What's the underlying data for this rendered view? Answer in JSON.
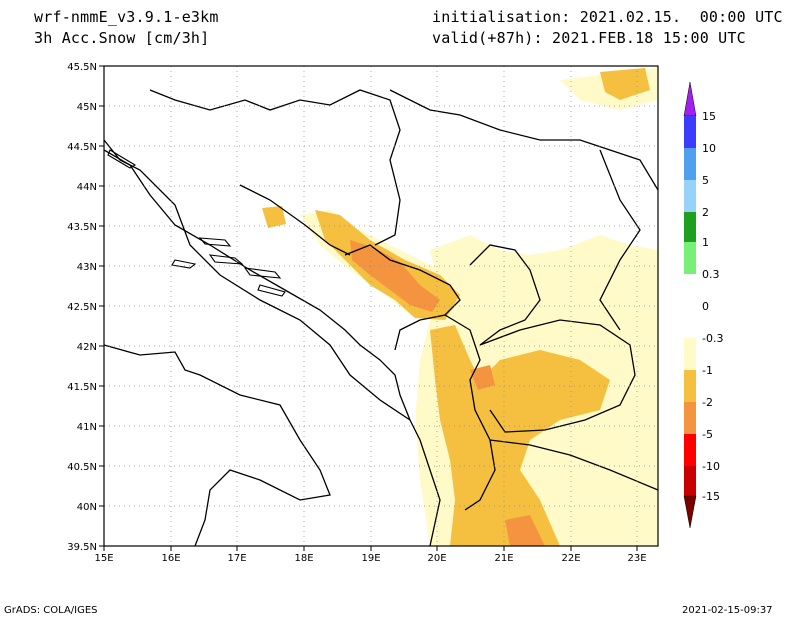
{
  "header": {
    "model": "wrf-nmmE_v3.9.1-e3km",
    "field": "3h Acc.Snow [cm/3h]",
    "init": "initialisation: 2021.02.15.  00:00 UTC",
    "valid": "valid(+87h): 2021.FEB.18 15:00 UTC"
  },
  "footer": {
    "credit": "GrADS: COLA/IGES",
    "timestamp": "2021-02-15-09:37"
  },
  "map": {
    "lon_range": [
      15,
      23.3
    ],
    "lat_range": [
      39.5,
      45.5
    ],
    "lon_ticks": [
      "15E",
      "16E",
      "17E",
      "18E",
      "19E",
      "20E",
      "21E",
      "22E",
      "23E"
    ],
    "lat_ticks": [
      "45.5N",
      "45N",
      "44.5N",
      "44N",
      "43.5N",
      "43N",
      "42.5N",
      "42N",
      "41.5N",
      "41N",
      "40.5N",
      "40N",
      "39.5N"
    ]
  },
  "colorbar": {
    "levels": [
      "15",
      "10",
      "5",
      "2",
      "1",
      "0.3",
      "0",
      "-0.3",
      "-1",
      "-2",
      "-5",
      "-10",
      "-15"
    ],
    "colors": {
      "top_arrow": "#a020f0",
      "c10_15": "#3c3cff",
      "c5_10": "#50a0f0",
      "c2_5": "#96d2fa",
      "c1_2": "#1ea01e",
      "c03_1": "#78f078",
      "neutral": "#ffffff",
      "cm03_m1": "#fffac8",
      "cm1_m2": "#f5c040",
      "cm2_m5": "#f59440",
      "cm5_m10": "#ff0000",
      "cm10_m15": "#c80000",
      "bottom_arrow": "#7a0000"
    }
  }
}
